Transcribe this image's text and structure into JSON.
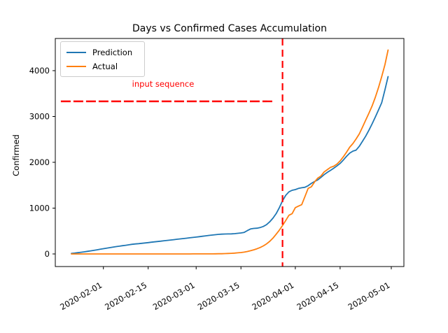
{
  "figure_title": "Days vs Confirmed Cases Accumulation",
  "chart_data": {
    "type": "line",
    "title": "Days vs Confirmed Cases Accumulation",
    "xlabel": "",
    "ylabel": "Confirmed",
    "x_start_date": "2020-01-22",
    "x_tick_labels": [
      "2020-02-01",
      "2020-02-15",
      "2020-03-01",
      "2020-03-15",
      "2020-04-01",
      "2020-04-15",
      "2020-05-01"
    ],
    "x_tick_days": [
      10,
      24,
      39,
      53,
      70,
      84,
      100
    ],
    "y_ticks": [
      0,
      1000,
      2000,
      3000,
      4000
    ],
    "ylim": [
      -275,
      4700
    ],
    "xlim_days": [
      -5,
      104
    ],
    "grid": false,
    "legend_position": "upper left",
    "series": [
      {
        "name": "Prediction",
        "color": "#1f77b4",
        "values": [
          10,
          18,
          27,
          36,
          46,
          56,
          67,
          78,
          90,
          102,
          114,
          126,
          138,
          149,
          160,
          170,
          180,
          190,
          200,
          210,
          218,
          225,
          232,
          240,
          248,
          256,
          264,
          272,
          280,
          288,
          296,
          304,
          312,
          320,
          328,
          336,
          344,
          352,
          360,
          368,
          377,
          386,
          395,
          404,
          412,
          420,
          427,
          432,
          435,
          437,
          438,
          442,
          450,
          458,
          470,
          510,
          545,
          558,
          562,
          575,
          600,
          640,
          700,
          780,
          880,
          1010,
          1160,
          1280,
          1355,
          1390,
          1405,
          1430,
          1445,
          1455,
          1490,
          1540,
          1580,
          1615,
          1670,
          1730,
          1780,
          1825,
          1870,
          1920,
          1975,
          2050,
          2130,
          2200,
          2245,
          2265,
          2350,
          2460,
          2570,
          2700,
          2840,
          2990,
          3140,
          3300,
          3580,
          3870
        ]
      },
      {
        "name": "Actual",
        "color": "#ff7f0e",
        "values": [
          0,
          0,
          0,
          0,
          0,
          0,
          0,
          0,
          0,
          0,
          0,
          0,
          0,
          0,
          0,
          0,
          0,
          0,
          0,
          0,
          0,
          0,
          0,
          0,
          0,
          0,
          0,
          0,
          0,
          0,
          0,
          0,
          0,
          0,
          0,
          0,
          0,
          0,
          1,
          1,
          1,
          1,
          1,
          2,
          2,
          3,
          4,
          5,
          7,
          10,
          14,
          18,
          24,
          30,
          40,
          54,
          70,
          90,
          113,
          140,
          175,
          220,
          275,
          345,
          430,
          520,
          620,
          730,
          845,
          880,
          1010,
          1045,
          1075,
          1250,
          1430,
          1465,
          1570,
          1655,
          1700,
          1790,
          1840,
          1890,
          1915,
          1960,
          2030,
          2120,
          2220,
          2330,
          2410,
          2510,
          2620,
          2770,
          2920,
          3070,
          3230,
          3420,
          3630,
          3870,
          4130,
          4450
        ]
      }
    ],
    "annotation": {
      "text": "input sequence",
      "color": "#ff0000",
      "line_y": 3330,
      "line_span_days": [
        -3.3,
        63.5
      ],
      "line_style": "dashed"
    },
    "vline": {
      "date": "2020-03-28",
      "day": 66,
      "color": "#ff0000",
      "style": "dashed"
    }
  }
}
